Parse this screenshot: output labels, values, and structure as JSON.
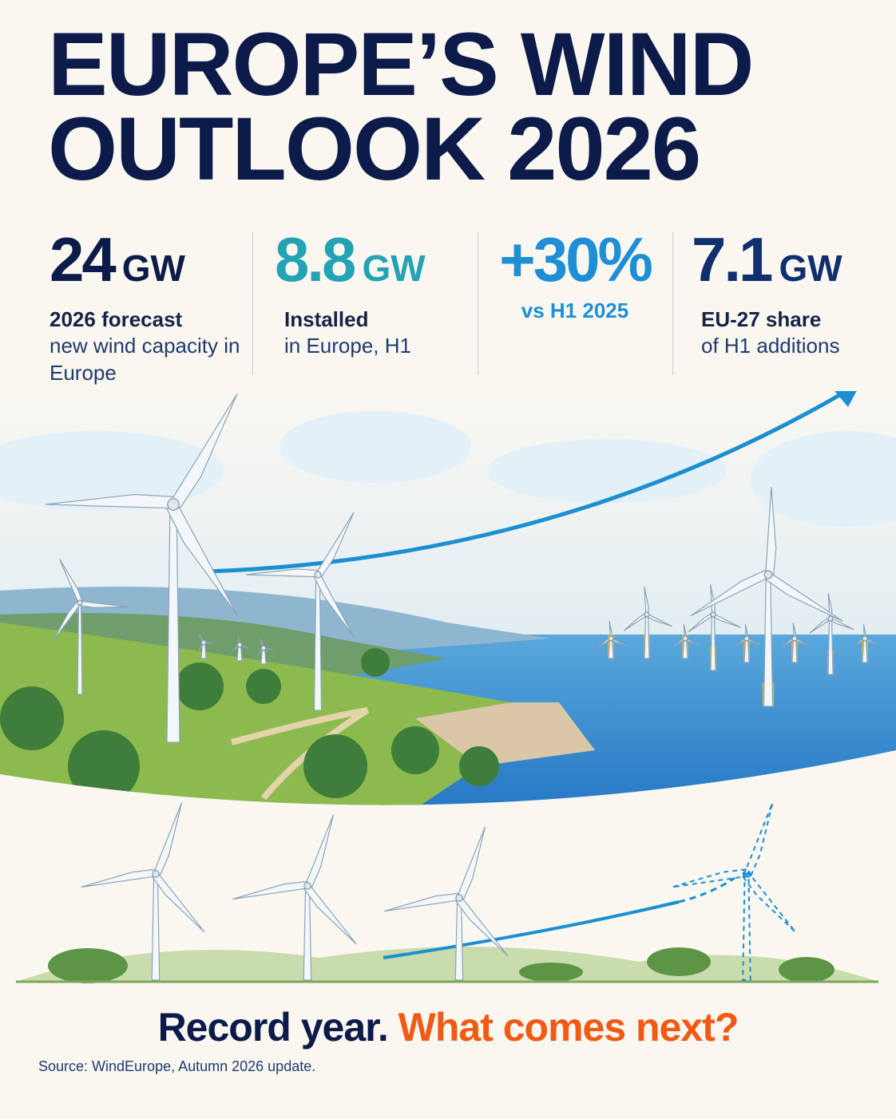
{
  "header": {
    "title_lines": [
      "EUROPE’S WIND",
      "OUTLOOK 2026"
    ]
  },
  "stats": [
    {
      "value": "24",
      "unit": "GW",
      "label": "2026 forecast",
      "sub": "new wind capacity in Europe"
    },
    {
      "value": "8.8",
      "unit": "GW",
      "label": "Installed",
      "sub": "in Europe, H1"
    },
    {
      "value": "+30%",
      "label": "vs H1 2025"
    },
    {
      "value": "7.1",
      "unit": "GW",
      "label": "EU-27 share",
      "sub": "of H1 additions"
    }
  ],
  "tagline": {
    "lead": "Record year.",
    "question": "What comes next?"
  },
  "source": "Source: WindEurope, Autumn 2026 update."
}
